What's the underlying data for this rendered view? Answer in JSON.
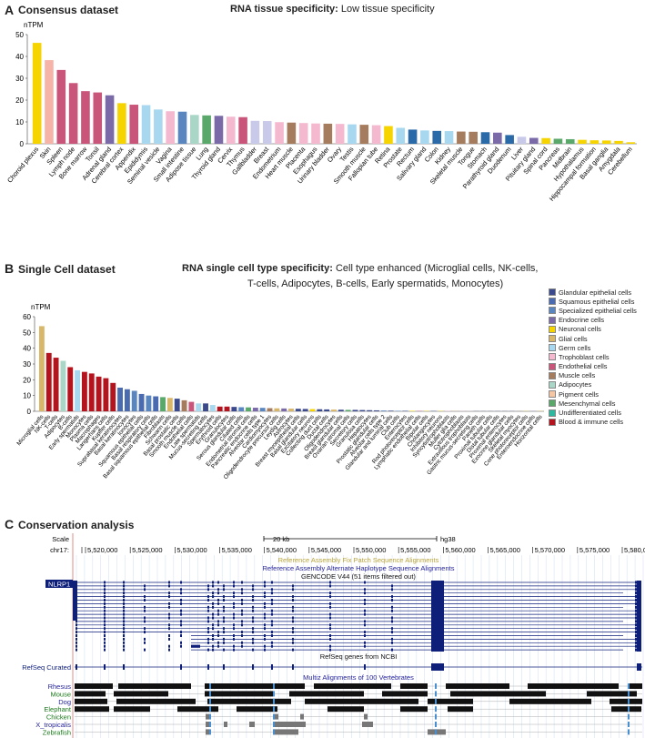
{
  "panel_a": {
    "label": "A",
    "title": "Consensus dataset",
    "spec_label": "RNA tissue specificity:",
    "spec_value": "Low tissue specificity"
  },
  "panel_b": {
    "label": "B",
    "title": "Single Cell dataset",
    "spec_label": "RNA single cell type specificity:",
    "spec_value_line1": "Cell type enhanced (Microglial cells, NK-cells,",
    "spec_value_line2": "T-cells, Adipocytes, B-cells, Early spermatids, Monocytes)",
    "legend": [
      {
        "label": "Glandular epithelial cells",
        "color": "#3b4a8c"
      },
      {
        "label": "Squamous epithelial cells",
        "color": "#4a6bb0"
      },
      {
        "label": "Specialized epithelial cells",
        "color": "#5a86c0"
      },
      {
        "label": "Endocrine cells",
        "color": "#7a6aa8"
      },
      {
        "label": "Neuronal cells",
        "color": "#f5d400"
      },
      {
        "label": "Glial cells",
        "color": "#d8b76a"
      },
      {
        "label": "Germ cells",
        "color": "#a8d8ef"
      },
      {
        "label": "Trophoblast cells",
        "color": "#f4b9cf"
      },
      {
        "label": "Endothelial cells",
        "color": "#c9567a"
      },
      {
        "label": "Muscle cells",
        "color": "#a67c5e"
      },
      {
        "label": "Adipocytes",
        "color": "#a9d6c7"
      },
      {
        "label": "Pigment cells",
        "color": "#f4c6a4"
      },
      {
        "label": "Mesenchymal cells",
        "color": "#5aa86a"
      },
      {
        "label": "Undifferentiated cells",
        "color": "#2eb8a0"
      },
      {
        "label": "Blood & immune cells",
        "color": "#b3141e"
      }
    ]
  },
  "panel_c": {
    "label": "C",
    "title": "Conservation analysis",
    "scale_label": "Scale",
    "chrom_label": "chr17:",
    "scale_bar_label": "20 kb",
    "assembly": "hg38",
    "positions": [
      "5,520,000",
      "5,525,000",
      "5,530,000",
      "5,535,000",
      "5,540,000",
      "5,545,000",
      "5,550,000",
      "5,555,000",
      "5,560,000",
      "5,565,000",
      "5,570,000",
      "5,575,000",
      "5,580,000"
    ],
    "fix_patch": "Reference Assembly Fix Patch Sequence Alignments",
    "alt_haplotype": "Reference Assembly Alternate Haplotype Sequence Alignments",
    "gencode": "GENCODE V44 (51 items filtered out)",
    "gene": "NLRP1",
    "refseq_track": "RefSeq genes from NCBI",
    "refseq_label": "RefSeq Curated",
    "multiz": "Multiz Alignments of 100 Vertebrates",
    "species": [
      "Rhesus",
      "Mouse",
      "Dog",
      "Elephant",
      "Chicken",
      "X_tropicalis",
      "Zebrafish"
    ]
  },
  "chart_data": [
    {
      "type": "bar",
      "title": "Consensus dataset",
      "ylabel": "nTPM",
      "ylim": [
        0,
        50
      ],
      "yticks": [
        0,
        10,
        20,
        30,
        40,
        50
      ],
      "categories": [
        "Choroid plexus",
        "Skin",
        "Spleen",
        "Lymph node",
        "Bone marrow",
        "Tonsil",
        "Adrenal gland",
        "Cerebral cortex",
        "Appendix",
        "Epididymis",
        "Seminal vesicle",
        "Vagina",
        "Small intestine",
        "Adipose tissue",
        "Lung",
        "Thyroid gland",
        "Cervix",
        "Thymus",
        "Gallbladder",
        "Breast",
        "Endometrium",
        "Heart muscle",
        "Placenta",
        "Esophagus",
        "Urinary bladder",
        "Ovary",
        "Testis",
        "Smooth muscle",
        "Fallopian tube",
        "Retina",
        "Prostate",
        "Rectum",
        "Salivary gland",
        "Colon",
        "Kidney",
        "Skeletal muscle",
        "Tongue",
        "Stomach",
        "Parathyroid gland",
        "Duodenum",
        "Liver",
        "Pituitary gland",
        "Spinal cord",
        "Pancreas",
        "Midbrain",
        "Hypothalamus",
        "Hippocampal formation",
        "Basal ganglia",
        "Amygdala",
        "Cerebellum"
      ],
      "values": [
        46.2,
        38.3,
        33.8,
        27.8,
        24.1,
        23.5,
        22.2,
        18.6,
        17.9,
        17.7,
        15.7,
        14.9,
        14.7,
        13.2,
        13.0,
        12.8,
        12.4,
        12.2,
        10.5,
        10.4,
        9.9,
        9.7,
        9.5,
        9.3,
        9.2,
        9.1,
        8.9,
        8.7,
        8.5,
        8.1,
        7.3,
        6.5,
        6.1,
        5.9,
        5.8,
        5.6,
        5.5,
        5.3,
        5.1,
        4.0,
        3.2,
        2.7,
        2.6,
        2.3,
        2.1,
        1.8,
        1.6,
        1.5,
        1.3,
        0.7
      ],
      "colors": [
        "#f5d400",
        "#f6b4a9",
        "#c9567a",
        "#c9567a",
        "#c9567a",
        "#c9567a",
        "#7a6aa8",
        "#f5d400",
        "#c9567a",
        "#a8d8ef",
        "#a8d8ef",
        "#f4b9cf",
        "#5a86c0",
        "#a9d6c7",
        "#5aa86a",
        "#7a6aa8",
        "#f4b9cf",
        "#c9567a",
        "#c9c9e9",
        "#c9c9e9",
        "#f4b9cf",
        "#a67c5e",
        "#f4b9cf",
        "#f4b9cf",
        "#a67c5e",
        "#f4b9cf",
        "#a8d8ef",
        "#a67c5e",
        "#f4b9cf",
        "#f5d400",
        "#a8d8ef",
        "#2b6aa8",
        "#a8d8ef",
        "#2b6aa8",
        "#a8d8ef",
        "#a67c5e",
        "#a67c5e",
        "#2b6aa8",
        "#7a6aa8",
        "#2b6aa8",
        "#c9c9e9",
        "#7a6aa8",
        "#f5d400",
        "#5aa86a",
        "#5aa86a",
        "#f5d400",
        "#f5d400",
        "#f5d400",
        "#f5d400",
        "#f5d400"
      ]
    },
    {
      "type": "bar",
      "title": "Single Cell dataset",
      "ylabel": "nTPM",
      "ylim": [
        0,
        60
      ],
      "yticks": [
        0,
        10,
        20,
        30,
        40,
        50,
        60
      ],
      "categories": [
        "Microglial cells",
        "NK-cells",
        "T-cells",
        "Adipocytes",
        "B-cells",
        "Early spermatids",
        "Monocytes",
        "Plasma cells",
        "Macrophages",
        "Langerhans cells",
        "Kupffer cells",
        "Suprabasal keratinocytes",
        "Basal keratinocytes",
        "Ionocytes",
        "Squamous epithelial cells",
        "Basal respiratory cells",
        "Basal squamous epithelial cells",
        "Fibroblasts",
        "Schwann cells",
        "Basal prostatic cells",
        "Smooth muscle cells",
        "Endothelial cells",
        "Late spermatids",
        "Mucus-secreting cells",
        "Spermatocytes",
        "Erythroid cells",
        "Granulocytes",
        "Serous glandular cells",
        "Ciliated cells",
        "Endometrial stromal cells",
        "Pancreatic endocrine cells",
        "Alveolar cells type 1",
        "Cardiomyocytes",
        "Oligodendrocyte precursor cells",
        "Leydig cells",
        "Astrocytes",
        "Breast myoepithelial cells",
        "Basal glandular cells",
        "Excitatory neurons",
        "Collecting duct cells",
        "Ductal cells",
        "Oligodendrocytes",
        "Breast glandular cells",
        "Ovarian stromal cells",
        "Secretory cells",
        "Granulosa cells",
        "Hepatocytes",
        "Prostatic glandular cells",
        "Alveolar cells type 2",
        "Glandular and luminal cells",
        "Club cells",
        "Enterocytes",
        "Rod photoreceptor cells",
        "Lymphatic endothelial cells",
        "Bipolar cells",
        "Cholangiocytes",
        "Inhibitory neurons",
        "Syncytiotrophoblasts",
        "Muller glia cells",
        "Cytotrophoblasts",
        "Extravillous trophoblasts",
        "Gastric mucus-secreting cells",
        "Paneth cells",
        "Proximal tubular cells",
        "Distal tubular cells",
        "Proximal enterocytes",
        "Exocrine glandular cells",
        "Skeletal myocytes",
        "Cone photoreceptor cells",
        "Enteroendocrine cells",
        "Horizontal cells"
      ],
      "values": [
        54,
        37,
        34,
        32,
        28,
        26,
        25,
        24,
        22,
        21,
        18,
        15,
        14,
        13,
        11,
        10,
        9.5,
        9,
        8.5,
        8,
        7,
        6,
        5,
        5,
        4,
        3,
        3,
        2.8,
        2.6,
        2.5,
        2.3,
        2.2,
        2.0,
        1.9,
        1.8,
        1.7,
        1.6,
        1.5,
        1.4,
        1.3,
        1.2,
        1.1,
        1.0,
        0.9,
        0.9,
        0.8,
        0.7,
        0.6,
        0.5,
        0.4,
        0.3,
        0.3,
        0.3,
        0.2,
        0.2,
        0.2,
        0.2,
        0.2,
        0.1,
        0.1,
        0.1,
        0.1,
        0.1,
        0.1,
        0.1,
        0.1,
        0.1,
        0.1,
        0.1,
        0.1,
        0.1
      ],
      "colors": [
        "#d8b76a",
        "#b3141e",
        "#b3141e",
        "#a9d6c7",
        "#b3141e",
        "#a8d8ef",
        "#b3141e",
        "#b3141e",
        "#b3141e",
        "#b3141e",
        "#b3141e",
        "#4a6bb0",
        "#4a6bb0",
        "#5a86c0",
        "#4a6bb0",
        "#5a86c0",
        "#4a6bb0",
        "#5aa86a",
        "#d8b76a",
        "#3b4a8c",
        "#a67c5e",
        "#c9567a",
        "#a8d8ef",
        "#3b4a8c",
        "#a8d8ef",
        "#b3141e",
        "#b3141e",
        "#3b4a8c",
        "#5a86c0",
        "#5aa86a",
        "#7a6aa8",
        "#5a86c0",
        "#a67c5e",
        "#d8b76a",
        "#7a6aa8",
        "#d8b76a",
        "#3b4a8c",
        "#3b4a8c",
        "#f5d400",
        "#3b4a8c",
        "#3b4a8c",
        "#d8b76a",
        "#3b4a8c",
        "#5aa86a",
        "#3b4a8c",
        "#3b4a8c",
        "#3b4a8c",
        "#3b4a8c",
        "#5a86c0",
        "#3b4a8c",
        "#5a86c0",
        "#3b4a8c",
        "#f5d400",
        "#c9567a",
        "#f5d400",
        "#3b4a8c",
        "#f5d400",
        "#f4b9cf",
        "#d8b76a",
        "#f4b9cf",
        "#f4b9cf",
        "#3b4a8c",
        "#3b4a8c",
        "#3b4a8c",
        "#3b4a8c",
        "#3b4a8c",
        "#3b4a8c",
        "#a67c5e",
        "#f5d400",
        "#7a6aa8",
        "#f5d400"
      ]
    }
  ]
}
